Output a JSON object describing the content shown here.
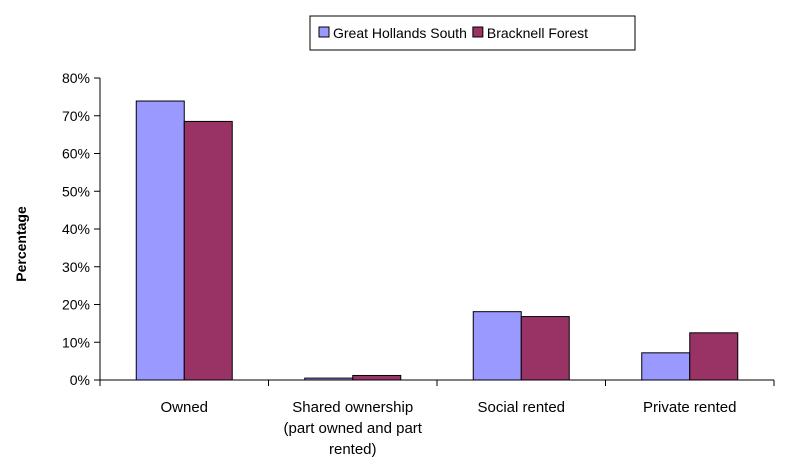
{
  "chart_data": {
    "type": "bar",
    "title": "",
    "xlabel": "",
    "ylabel": "Percentage",
    "ylim": [
      0,
      80
    ],
    "y_ticks": [
      "0%",
      "10%",
      "20%",
      "30%",
      "40%",
      "50%",
      "60%",
      "70%",
      "80%"
    ],
    "categories": [
      [
        "Owned"
      ],
      [
        "Shared ownership",
        "(part owned and part",
        "rented)"
      ],
      [
        "Social rented"
      ],
      [
        "Private rented"
      ]
    ],
    "series": [
      {
        "name": "Great Hollands South",
        "color": "#9999ff",
        "values": [
          73.9,
          0.5,
          18.1,
          7.2
        ]
      },
      {
        "name": "Bracknell Forest",
        "color": "#993366",
        "values": [
          68.5,
          1.2,
          16.8,
          12.5
        ]
      }
    ],
    "grid": false,
    "legend_position": "top-right"
  }
}
